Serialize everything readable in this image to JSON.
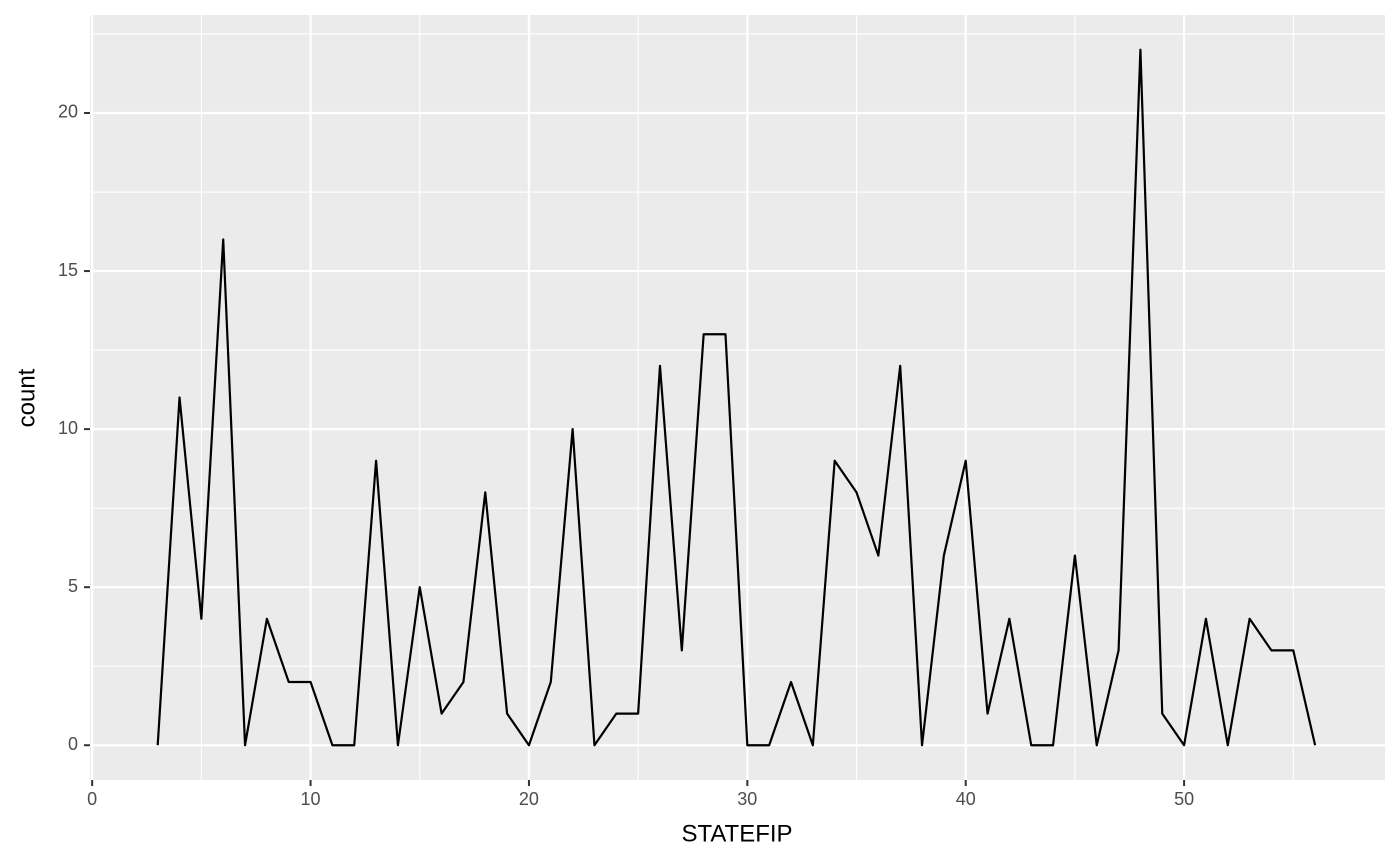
{
  "chart_data": {
    "type": "line",
    "x_label": "STATEFIP",
    "y_label": "count",
    "x": [
      3,
      4,
      5,
      6,
      7,
      8,
      9,
      10,
      11,
      12,
      13,
      14,
      15,
      16,
      17,
      18,
      19,
      20,
      21,
      22,
      23,
      24,
      25,
      26,
      27,
      28,
      29,
      30,
      31,
      32,
      33,
      34,
      35,
      36,
      37,
      38,
      39,
      40,
      41,
      42,
      43,
      44,
      45,
      46,
      47,
      48,
      49,
      50,
      51,
      52,
      53,
      54,
      55,
      56
    ],
    "series": [
      {
        "color": "#000000",
        "values": [
          0,
          11,
          4,
          16,
          0,
          4,
          2,
          2,
          0,
          0,
          9,
          0,
          5,
          1,
          2,
          8,
          1,
          0,
          2,
          10,
          0,
          1,
          1,
          12,
          3,
          13,
          13,
          0,
          0,
          2,
          0,
          9,
          8,
          6,
          12,
          0,
          6,
          9,
          1,
          4,
          0,
          0,
          6,
          0,
          3,
          22,
          1,
          0,
          4,
          0,
          4,
          3,
          3,
          0
        ]
      }
    ],
    "xlim": [
      -0.1,
      59.2
    ],
    "ylim": [
      -1.1,
      23.1
    ],
    "xticks": [
      0,
      10,
      20,
      30,
      40,
      50
    ],
    "yticks": [
      0,
      5,
      10,
      15,
      20
    ],
    "x_minor_ticks": [
      5,
      15,
      25,
      35,
      45,
      55
    ],
    "y_minor_ticks": [
      2.5,
      7.5,
      12.5,
      17.5,
      22.5
    ],
    "grid": true
  }
}
